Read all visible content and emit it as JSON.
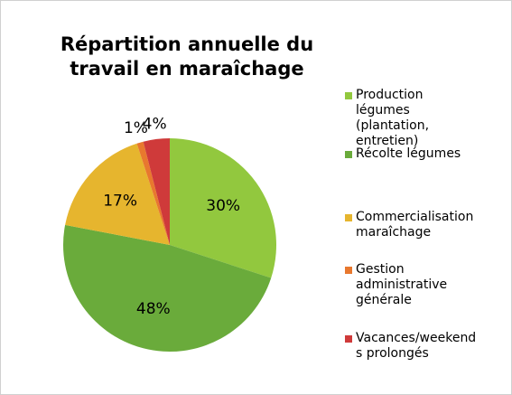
{
  "chart_data": {
    "type": "pie",
    "title": "Répartition annuelle du travail en maraîchage",
    "categories": [
      "Production légumes (plantation, entretien)",
      "Récolte légumes",
      "Commercialisation maraîchage",
      "Gestion administrative générale",
      "Vacances/weekends prolongés"
    ],
    "values": [
      30,
      48,
      17,
      1,
      4
    ],
    "value_labels": [
      "30%",
      "48%",
      "17%",
      "1%",
      "4%"
    ],
    "colors": [
      "#92c83e",
      "#6aab3b",
      "#e6b52e",
      "#e8782e",
      "#cf3a3a"
    ],
    "legend": "right"
  }
}
